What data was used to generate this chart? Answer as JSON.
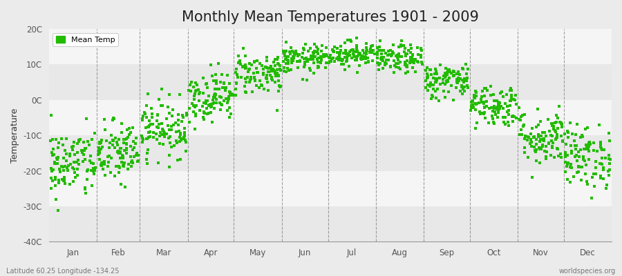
{
  "title": "Monthly Mean Temperatures 1901 - 2009",
  "ylabel": "Temperature",
  "ylim": [
    -40,
    20
  ],
  "yticks": [
    20,
    10,
    0,
    -10,
    -20,
    -30,
    -40
  ],
  "ytick_labels": [
    "20C",
    "10C",
    "0C",
    "-10C",
    "-20C",
    "-30C",
    "-40C"
  ],
  "months": [
    "Jan",
    "Feb",
    "Mar",
    "Apr",
    "May",
    "Jun",
    "Jul",
    "Aug",
    "Sep",
    "Oct",
    "Nov",
    "Dec"
  ],
  "dot_color": "#22BB00",
  "dot_size": 7,
  "background_color": "#EBEBEB",
  "band_color_light": "#F5F5F5",
  "band_color_dark": "#E8E8E8",
  "subtitle_left": "Latitude 60.25 Longitude -134.25",
  "subtitle_right": "worldspecies.org",
  "legend_label": "Mean Temp",
  "title_fontsize": 15,
  "monthly_means": [
    -18.0,
    -15.0,
    -8.0,
    1.0,
    7.5,
    11.5,
    13.0,
    11.5,
    5.5,
    -1.5,
    -10.5,
    -16.0
  ],
  "monthly_stds": [
    5.0,
    4.5,
    4.0,
    3.5,
    3.0,
    2.0,
    1.8,
    2.0,
    2.5,
    3.0,
    4.0,
    4.5
  ],
  "n_years": 109,
  "seed": 42
}
